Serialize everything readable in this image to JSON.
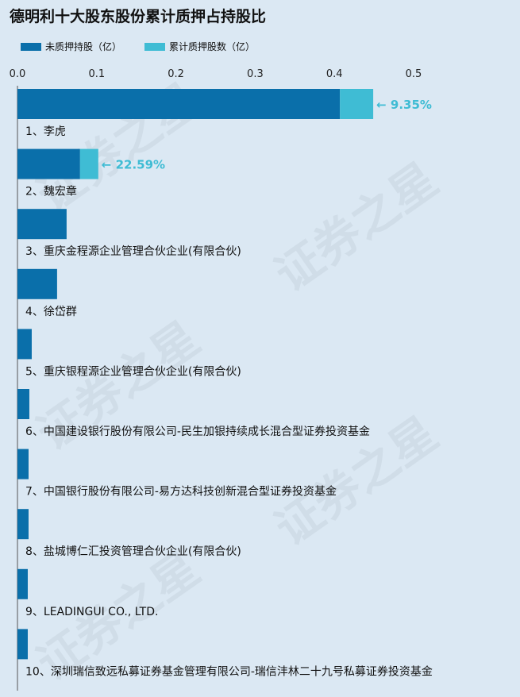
{
  "chart_data": {
    "type": "bar",
    "orientation": "horizontal",
    "stacked": true,
    "title": "德明利十大股东股份累计质押占持股比",
    "xlim": [
      0,
      0.55
    ],
    "xticks": [
      "0.0",
      "0.1",
      "0.2",
      "0.3",
      "0.4",
      "0.5"
    ],
    "xtick_values": [
      0,
      0.1,
      0.2,
      0.3,
      0.4,
      0.5
    ],
    "legend_position": "top-left",
    "grid": false,
    "categories": [
      "1、李虎",
      "2、魏宏章",
      "3、重庆金程源企业管理合伙企业(有限合伙)",
      "4、徐岱群",
      "5、重庆银程源企业管理合伙企业(有限合伙)",
      "6、中国建设银行股份有限公司-民生加银持续成长混合型证券投资基金",
      "7、中国银行股份有限公司-易方达科技创新混合型证券投资基金",
      "8、盐城博仁汇投资管理合伙企业(有限合伙)",
      "9、LEADINGUI CO., LTD.",
      "10、深圳瑞信致远私募证券基金管理有限公司-瑞信沣林二十九号私募证券投资基金"
    ],
    "series": [
      {
        "name": "未质押持股（亿）",
        "color": "#0a6faa",
        "values": [
          0.407,
          0.079,
          0.062,
          0.05,
          0.018,
          0.015,
          0.014,
          0.014,
          0.013,
          0.013
        ]
      },
      {
        "name": "累计质押股数（亿）",
        "color": "#3fbcd4",
        "values": [
          0.042,
          0.023,
          0,
          0,
          0,
          0,
          0,
          0,
          0,
          0
        ]
      }
    ],
    "annotations": [
      {
        "category_index": 0,
        "text": "← 9.35%"
      },
      {
        "category_index": 1,
        "text": "← 22.59%"
      }
    ],
    "annotation_color": "#3fbcd4"
  },
  "watermark_text": "证券之星"
}
